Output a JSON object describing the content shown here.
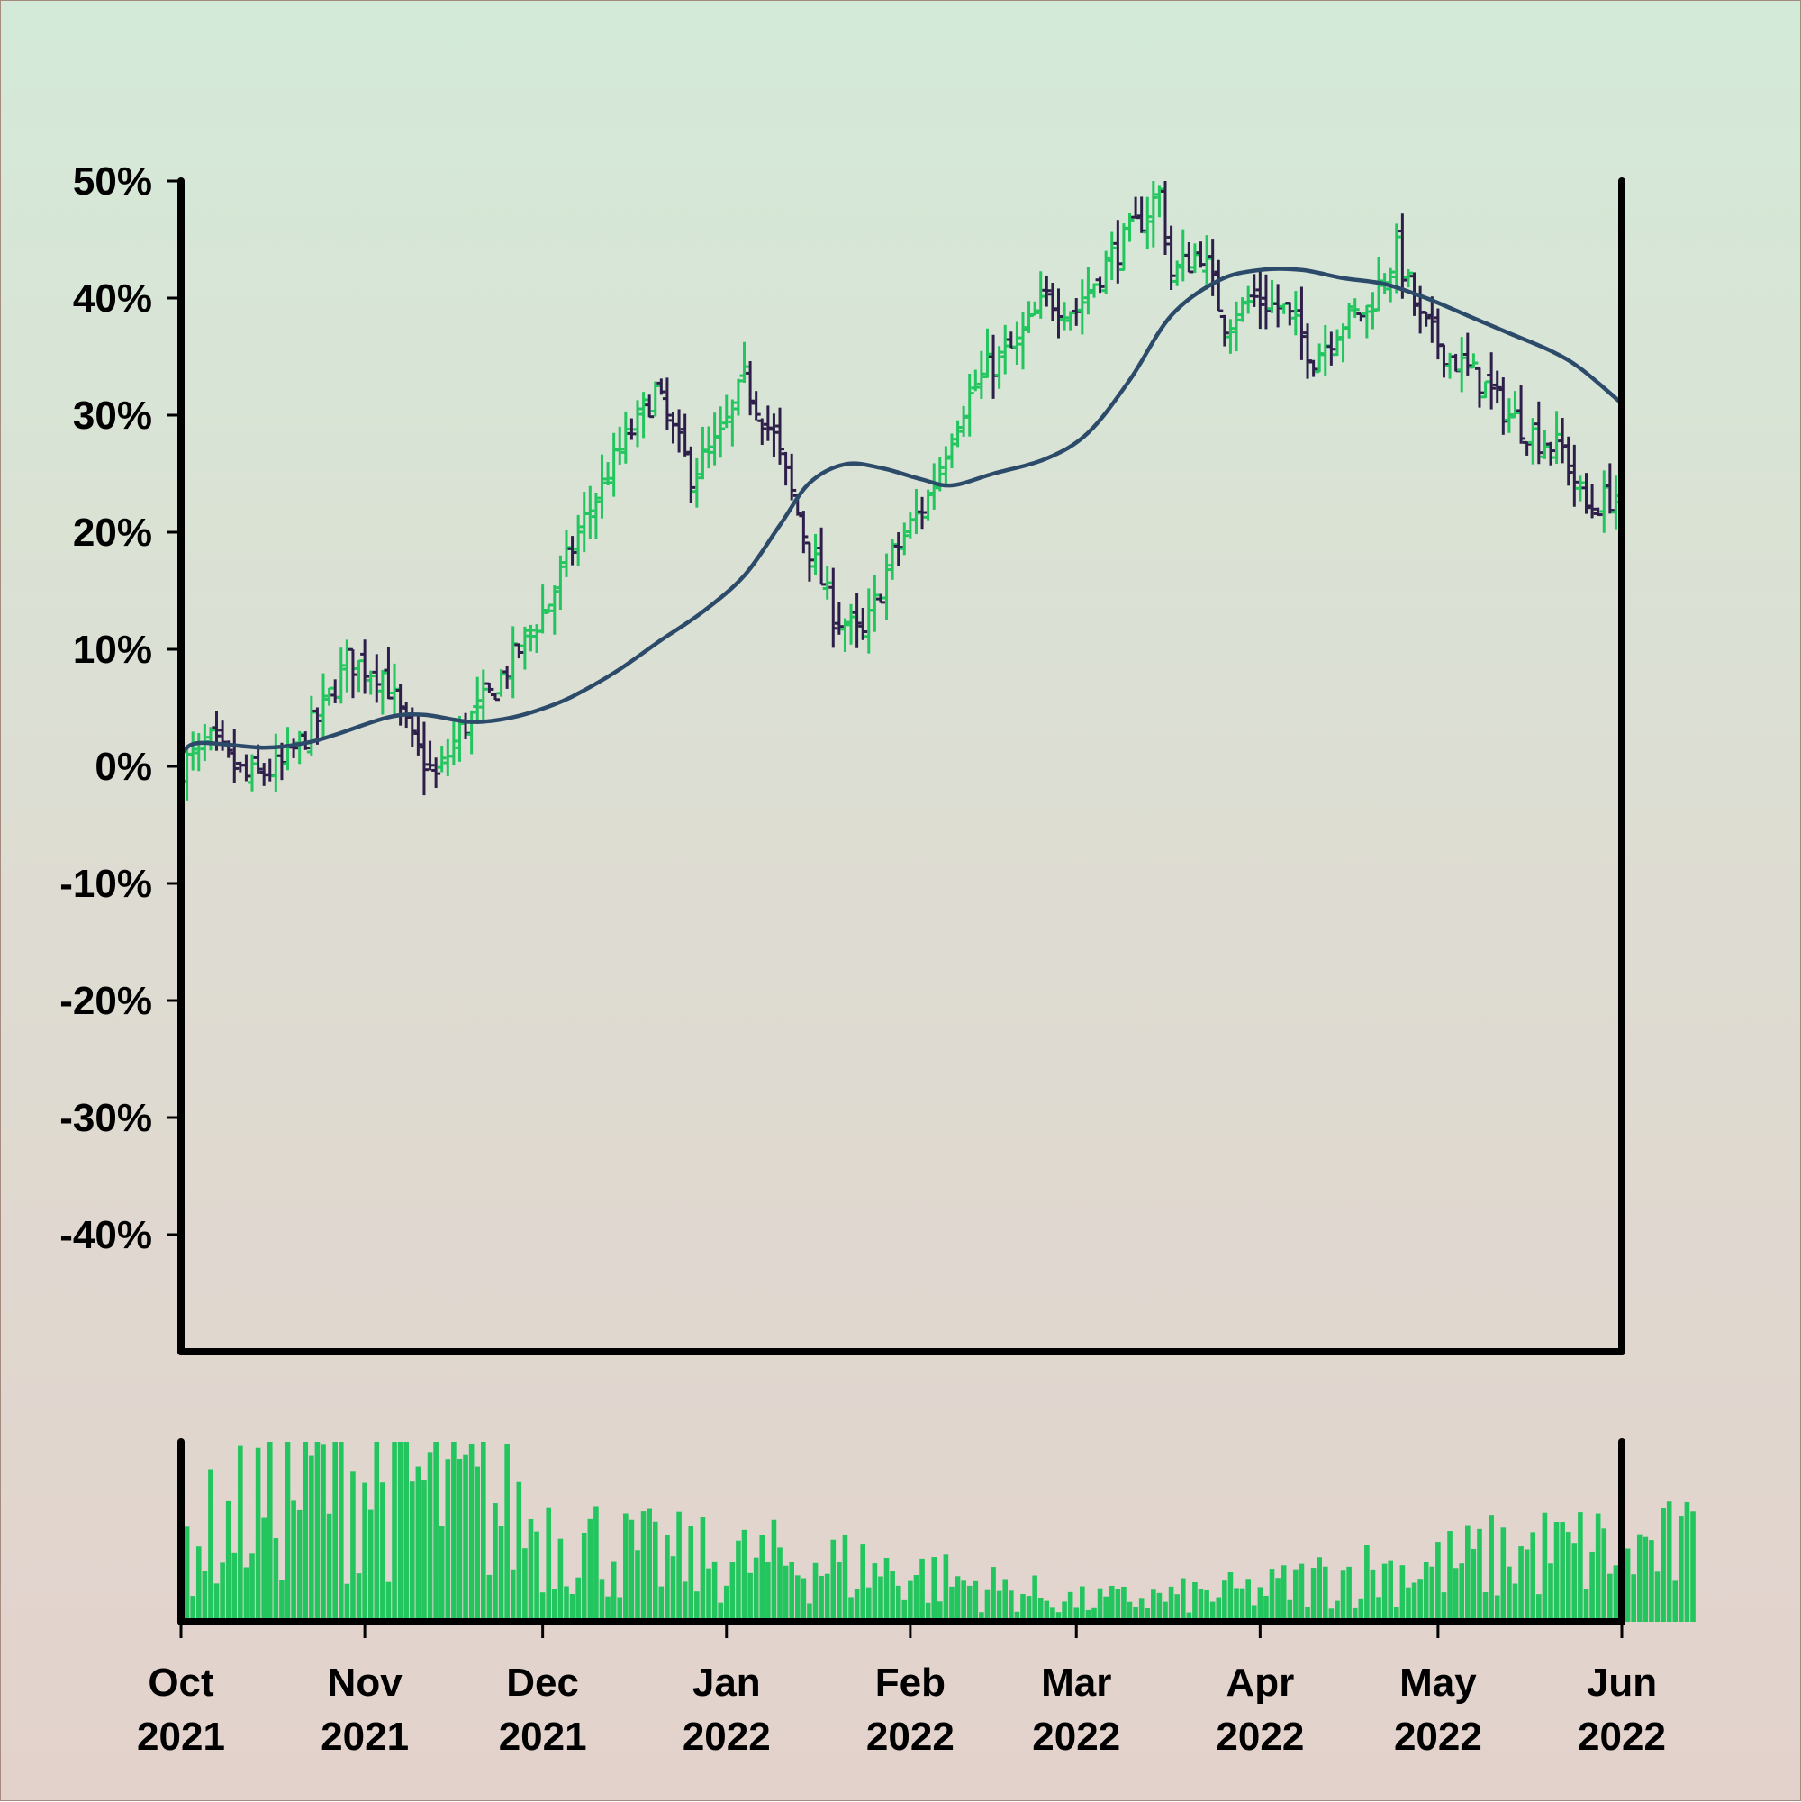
{
  "chart_data": {
    "type": "ohlc",
    "title": "",
    "xlabel": "",
    "ylabel": "",
    "ylim": [
      -50,
      50
    ],
    "y_ticks": [
      "50%",
      "40%",
      "30%",
      "20%",
      "10%",
      "0%",
      "-10%",
      "-20%",
      "-30%",
      "-40%"
    ],
    "y_tick_values": [
      50,
      40,
      30,
      20,
      10,
      0,
      -10,
      -20,
      -30,
      -40
    ],
    "x_range": [
      "2021-10-01",
      "2022-06-01"
    ],
    "x_ticks": [
      {
        "date": "2021-10-01",
        "month": "Oct",
        "year": "2021"
      },
      {
        "date": "2021-11-01",
        "month": "Nov",
        "year": "2021"
      },
      {
        "date": "2021-12-01",
        "month": "Dec",
        "year": "2021"
      },
      {
        "date": "2022-01-01",
        "month": "Jan",
        "year": "2022"
      },
      {
        "date": "2022-02-01",
        "month": "Feb",
        "year": "2022"
      },
      {
        "date": "2022-03-01",
        "month": "Mar",
        "year": "2022"
      },
      {
        "date": "2022-04-01",
        "month": "Apr",
        "year": "2022"
      },
      {
        "date": "2022-05-01",
        "month": "May",
        "year": "2022"
      },
      {
        "date": "2022-06-01",
        "month": "Jun",
        "year": "2022"
      }
    ],
    "close_keypoints": [
      [
        "2021-10-01",
        0
      ],
      [
        "2021-10-06",
        2
      ],
      [
        "2021-10-12",
        -1
      ],
      [
        "2021-10-18",
        0
      ],
      [
        "2021-10-24",
        4
      ],
      [
        "2021-10-29",
        9
      ],
      [
        "2021-11-04",
        8
      ],
      [
        "2021-11-09",
        2
      ],
      [
        "2021-11-13",
        -1
      ],
      [
        "2021-11-17",
        3
      ],
      [
        "2021-11-22",
        6
      ],
      [
        "2021-11-27",
        10
      ],
      [
        "2021-12-02",
        14
      ],
      [
        "2021-12-08",
        21
      ],
      [
        "2021-12-14",
        27
      ],
      [
        "2021-12-20",
        32
      ],
      [
        "2021-12-26",
        25
      ],
      [
        "2021-12-31",
        28
      ],
      [
        "2022-01-04",
        33
      ],
      [
        "2022-01-09",
        28
      ],
      [
        "2022-01-14",
        20
      ],
      [
        "2022-01-19",
        13
      ],
      [
        "2022-01-24",
        11
      ],
      [
        "2022-01-29",
        18
      ],
      [
        "2022-02-04",
        23
      ],
      [
        "2022-02-09",
        30
      ],
      [
        "2022-02-14",
        34
      ],
      [
        "2022-02-19",
        36
      ],
      [
        "2022-02-24",
        40
      ],
      [
        "2022-03-01",
        39
      ],
      [
        "2022-03-06",
        43
      ],
      [
        "2022-03-11",
        46
      ],
      [
        "2022-03-15",
        49
      ],
      [
        "2022-03-17",
        42
      ],
      [
        "2022-03-22",
        44
      ],
      [
        "2022-03-26",
        38
      ],
      [
        "2022-03-31",
        40
      ],
      [
        "2022-04-05",
        39
      ],
      [
        "2022-04-10",
        35
      ],
      [
        "2022-04-15",
        38
      ],
      [
        "2022-04-19",
        39
      ],
      [
        "2022-04-24",
        44
      ],
      [
        "2022-04-28",
        38
      ],
      [
        "2022-05-03",
        35
      ],
      [
        "2022-05-08",
        33
      ],
      [
        "2022-05-13",
        30
      ],
      [
        "2022-05-18",
        28
      ],
      [
        "2022-05-22",
        27
      ],
      [
        "2022-05-26",
        22
      ],
      [
        "2022-05-30",
        23
      ],
      [
        "2022-06-03",
        24
      ],
      [
        "2022-06-08",
        26
      ],
      [
        "2022-06-13",
        27
      ]
    ],
    "moving_average": [
      [
        "2021-10-01",
        1
      ],
      [
        "2021-10-04",
        2
      ],
      [
        "2021-10-15",
        1.6
      ],
      [
        "2021-10-22",
        2
      ],
      [
        "2021-10-27",
        2.7
      ],
      [
        "2021-11-05",
        4.2
      ],
      [
        "2021-11-11",
        4.4
      ],
      [
        "2021-11-19",
        3.8
      ],
      [
        "2021-11-26",
        4.2
      ],
      [
        "2021-12-03",
        5.3
      ],
      [
        "2021-12-08",
        6.5
      ],
      [
        "2021-12-14",
        8.3
      ],
      [
        "2021-12-21",
        10.8
      ],
      [
        "2021-12-28",
        13.2
      ],
      [
        "2022-01-04",
        16.3
      ],
      [
        "2022-01-10",
        20.6
      ],
      [
        "2022-01-15",
        24.2
      ],
      [
        "2022-01-21",
        25.8
      ],
      [
        "2022-01-27",
        25.5
      ],
      [
        "2022-02-03",
        24.5
      ],
      [
        "2022-02-08",
        24
      ],
      [
        "2022-02-15",
        25
      ],
      [
        "2022-02-24",
        26.3
      ],
      [
        "2022-03-03",
        28.5
      ],
      [
        "2022-03-10",
        33
      ],
      [
        "2022-03-17",
        38.5
      ],
      [
        "2022-03-25",
        41.5
      ],
      [
        "2022-04-01",
        42.4
      ],
      [
        "2022-04-08",
        42.4
      ],
      [
        "2022-04-15",
        41.7
      ],
      [
        "2022-04-22",
        41.2
      ],
      [
        "2022-04-29",
        40
      ],
      [
        "2022-05-06",
        38.5
      ],
      [
        "2022-05-13",
        37
      ],
      [
        "2022-05-20",
        35.5
      ],
      [
        "2022-05-25",
        34
      ],
      [
        "2022-06-01",
        31
      ]
    ],
    "volume_keypoints": [
      [
        "2021-10-01",
        45
      ],
      [
        "2021-10-10",
        60
      ],
      [
        "2021-10-20",
        80
      ],
      [
        "2021-10-30",
        85
      ],
      [
        "2021-11-10",
        80
      ],
      [
        "2021-11-20",
        70
      ],
      [
        "2021-12-01",
        55
      ],
      [
        "2021-12-15",
        40
      ],
      [
        "2022-01-01",
        35
      ],
      [
        "2022-01-15",
        35
      ],
      [
        "2022-02-01",
        28
      ],
      [
        "2022-02-15",
        20
      ],
      [
        "2022-03-01",
        12
      ],
      [
        "2022-03-15",
        14
      ],
      [
        "2022-04-01",
        18
      ],
      [
        "2022-04-15",
        28
      ],
      [
        "2022-05-01",
        32
      ],
      [
        "2022-05-15",
        40
      ],
      [
        "2022-06-01",
        42
      ]
    ],
    "colors": {
      "up": "#22c55e",
      "down": "#2e1f4a",
      "volume": "#22c55e",
      "moving_average": "#2c4a6a",
      "axis": "#000000",
      "background_top": "#d4ead8",
      "background_bottom": "#e3d2cc"
    },
    "grid": false,
    "legend": "none"
  }
}
